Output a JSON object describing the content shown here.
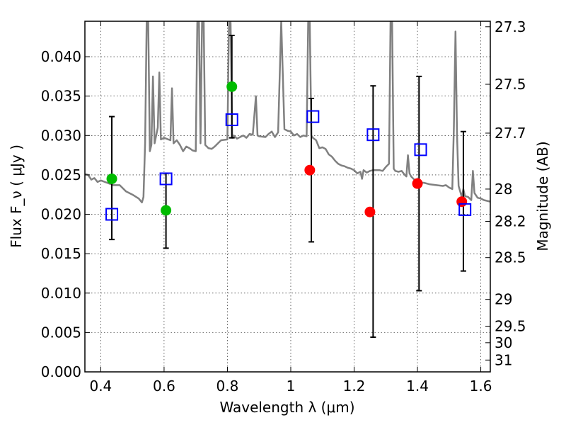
{
  "chart_data": {
    "type": "scatter",
    "x_axis": {
      "label": "Wavelength  λ (μm)",
      "range": [
        0.35,
        1.63
      ],
      "ticks": [
        0.4,
        0.6,
        0.8,
        1.0,
        1.2,
        1.4,
        1.6
      ],
      "tick_labels": [
        "0.4",
        "0.6",
        "0.8",
        "1",
        "1.2",
        "1.4",
        "1.6"
      ]
    },
    "y_axis": {
      "label": "Flux  F_ν  ( μJy )",
      "range": [
        0.0,
        0.0445
      ],
      "ticks": [
        0.0,
        0.005,
        0.01,
        0.015,
        0.02,
        0.025,
        0.03,
        0.035,
        0.04
      ],
      "tick_labels": [
        "0.000",
        "0.005",
        "0.010",
        "0.015",
        "0.020",
        "0.025",
        "0.030",
        "0.035",
        "0.040"
      ]
    },
    "y2_axis": {
      "label": "Magnitude (AB)",
      "ticks": [
        {
          "label": "27.3",
          "flux": 0.0438
        },
        {
          "label": "27.5",
          "flux": 0.0365
        },
        {
          "label": "27.7",
          "flux": 0.0303
        },
        {
          "label": "28",
          "flux": 0.0232
        },
        {
          "label": "28.2",
          "flux": 0.0191
        },
        {
          "label": "28.5",
          "flux": 0.0145
        },
        {
          "label": "29",
          "flux": 0.0092
        },
        {
          "label": "29.5",
          "flux": 0.0058
        },
        {
          "label": "30",
          "flux": 0.0037
        },
        {
          "label": "31",
          "flux": 0.0015
        }
      ]
    },
    "grid": true,
    "series": [
      {
        "marker": "circle",
        "color": "#00bb00",
        "points": [
          {
            "x": 0.435,
            "y": 0.0245
          },
          {
            "x": 0.606,
            "y": 0.0205
          },
          {
            "x": 0.814,
            "y": 0.0362
          }
        ]
      },
      {
        "marker": "circle",
        "color": "#ff0000",
        "points": [
          {
            "x": 1.06,
            "y": 0.0256
          },
          {
            "x": 1.25,
            "y": 0.0203
          },
          {
            "x": 1.4,
            "y": 0.0239
          },
          {
            "x": 1.54,
            "y": 0.0216
          }
        ]
      },
      {
        "marker": "open-square",
        "color": "#0000ff",
        "points": [
          {
            "x": 0.435,
            "y": 0.02
          },
          {
            "x": 0.606,
            "y": 0.0245
          },
          {
            "x": 0.814,
            "y": 0.032
          },
          {
            "x": 1.07,
            "y": 0.0324
          },
          {
            "x": 1.26,
            "y": 0.0301
          },
          {
            "x": 1.41,
            "y": 0.0282
          },
          {
            "x": 1.55,
            "y": 0.0206
          }
        ]
      },
      {
        "marker": "errorbar",
        "color": "#000000",
        "bars": [
          {
            "x": 0.435,
            "low": 0.0168,
            "high": 0.0324
          },
          {
            "x": 0.606,
            "low": 0.0157,
            "high": 0.0252
          },
          {
            "x": 0.814,
            "low": 0.0297,
            "high": 0.0427
          },
          {
            "x": 1.065,
            "low": 0.0165,
            "high": 0.0347
          },
          {
            "x": 1.26,
            "low": 0.0044,
            "high": 0.0363
          },
          {
            "x": 1.405,
            "low": 0.0103,
            "high": 0.0375
          },
          {
            "x": 1.545,
            "low": 0.0128,
            "high": 0.0305
          }
        ]
      },
      {
        "marker": "line",
        "color": "#808080",
        "points": [
          [
            0.35,
            0.0251
          ],
          [
            0.36,
            0.025
          ],
          [
            0.37,
            0.0244
          ],
          [
            0.38,
            0.0246
          ],
          [
            0.39,
            0.0241
          ],
          [
            0.4,
            0.0243
          ],
          [
            0.42,
            0.024
          ],
          [
            0.44,
            0.0237
          ],
          [
            0.46,
            0.0237
          ],
          [
            0.48,
            0.0229
          ],
          [
            0.5,
            0.0225
          ],
          [
            0.52,
            0.022
          ],
          [
            0.53,
            0.0215
          ],
          [
            0.535,
            0.0222
          ],
          [
            0.54,
            0.029
          ],
          [
            0.545,
            0.0445
          ],
          [
            0.55,
            0.0445
          ],
          [
            0.555,
            0.028
          ],
          [
            0.56,
            0.0288
          ],
          [
            0.565,
            0.0375
          ],
          [
            0.57,
            0.029
          ],
          [
            0.58,
            0.031
          ],
          [
            0.585,
            0.038
          ],
          [
            0.59,
            0.0295
          ],
          [
            0.6,
            0.0297
          ],
          [
            0.62,
            0.0294
          ],
          [
            0.625,
            0.036
          ],
          [
            0.63,
            0.029
          ],
          [
            0.64,
            0.0294
          ],
          [
            0.65,
            0.0288
          ],
          [
            0.66,
            0.028
          ],
          [
            0.67,
            0.0286
          ],
          [
            0.68,
            0.0284
          ],
          [
            0.69,
            0.0281
          ],
          [
            0.7,
            0.028
          ],
          [
            0.705,
            0.0445
          ],
          [
            0.71,
            0.0445
          ],
          [
            0.715,
            0.029
          ],
          [
            0.72,
            0.0445
          ],
          [
            0.725,
            0.0445
          ],
          [
            0.73,
            0.0288
          ],
          [
            0.74,
            0.0284
          ],
          [
            0.75,
            0.0283
          ],
          [
            0.76,
            0.0286
          ],
          [
            0.77,
            0.029
          ],
          [
            0.78,
            0.0294
          ],
          [
            0.8,
            0.0295
          ],
          [
            0.805,
            0.0445
          ],
          [
            0.81,
            0.0445
          ],
          [
            0.815,
            0.0297
          ],
          [
            0.82,
            0.03
          ],
          [
            0.83,
            0.0296
          ],
          [
            0.84,
            0.0298
          ],
          [
            0.85,
            0.03
          ],
          [
            0.86,
            0.0297
          ],
          [
            0.87,
            0.0302
          ],
          [
            0.88,
            0.0301
          ],
          [
            0.89,
            0.035
          ],
          [
            0.895,
            0.03
          ],
          [
            0.9,
            0.0299
          ],
          [
            0.92,
            0.0298
          ],
          [
            0.93,
            0.0302
          ],
          [
            0.94,
            0.0305
          ],
          [
            0.95,
            0.0298
          ],
          [
            0.96,
            0.0304
          ],
          [
            0.97,
            0.0445
          ],
          [
            0.98,
            0.0308
          ],
          [
            0.99,
            0.0306
          ],
          [
            1.0,
            0.0305
          ],
          [
            1.01,
            0.03
          ],
          [
            1.02,
            0.0302
          ],
          [
            1.03,
            0.0298
          ],
          [
            1.04,
            0.03
          ],
          [
            1.05,
            0.0299
          ],
          [
            1.055,
            0.0445
          ],
          [
            1.06,
            0.0445
          ],
          [
            1.065,
            0.03
          ],
          [
            1.07,
            0.0297
          ],
          [
            1.08,
            0.0294
          ],
          [
            1.09,
            0.0284
          ],
          [
            1.1,
            0.0285
          ],
          [
            1.11,
            0.0283
          ],
          [
            1.12,
            0.0276
          ],
          [
            1.13,
            0.0273
          ],
          [
            1.14,
            0.0268
          ],
          [
            1.15,
            0.0264
          ],
          [
            1.16,
            0.0262
          ],
          [
            1.17,
            0.0261
          ],
          [
            1.18,
            0.0259
          ],
          [
            1.19,
            0.0258
          ],
          [
            1.2,
            0.0256
          ],
          [
            1.21,
            0.0252
          ],
          [
            1.22,
            0.0254
          ],
          [
            1.225,
            0.0245
          ],
          [
            1.23,
            0.0256
          ],
          [
            1.24,
            0.0253
          ],
          [
            1.25,
            0.0255
          ],
          [
            1.26,
            0.0256
          ],
          [
            1.27,
            0.0256
          ],
          [
            1.28,
            0.0256
          ],
          [
            1.29,
            0.0255
          ],
          [
            1.3,
            0.026
          ],
          [
            1.31,
            0.0264
          ],
          [
            1.315,
            0.0445
          ],
          [
            1.32,
            0.0445
          ],
          [
            1.325,
            0.0258
          ],
          [
            1.33,
            0.0255
          ],
          [
            1.34,
            0.0254
          ],
          [
            1.35,
            0.0255
          ],
          [
            1.36,
            0.025
          ],
          [
            1.365,
            0.0248
          ],
          [
            1.37,
            0.0275
          ],
          [
            1.375,
            0.0252
          ],
          [
            1.38,
            0.0248
          ],
          [
            1.39,
            0.0244
          ],
          [
            1.4,
            0.0242
          ],
          [
            1.41,
            0.024
          ],
          [
            1.42,
            0.024
          ],
          [
            1.44,
            0.0238
          ],
          [
            1.46,
            0.0237
          ],
          [
            1.48,
            0.0236
          ],
          [
            1.49,
            0.0237
          ],
          [
            1.5,
            0.0234
          ],
          [
            1.51,
            0.0232
          ],
          [
            1.515,
            0.031
          ],
          [
            1.52,
            0.0432
          ],
          [
            1.525,
            0.03
          ],
          [
            1.53,
            0.0236
          ],
          [
            1.54,
            0.0222
          ],
          [
            1.545,
            0.0232
          ],
          [
            1.55,
            0.0223
          ],
          [
            1.56,
            0.0222
          ],
          [
            1.57,
            0.0218
          ],
          [
            1.575,
            0.0255
          ],
          [
            1.58,
            0.0227
          ],
          [
            1.59,
            0.0221
          ],
          [
            1.6,
            0.022
          ],
          [
            1.61,
            0.0218
          ],
          [
            1.63,
            0.0216
          ]
        ]
      }
    ]
  }
}
